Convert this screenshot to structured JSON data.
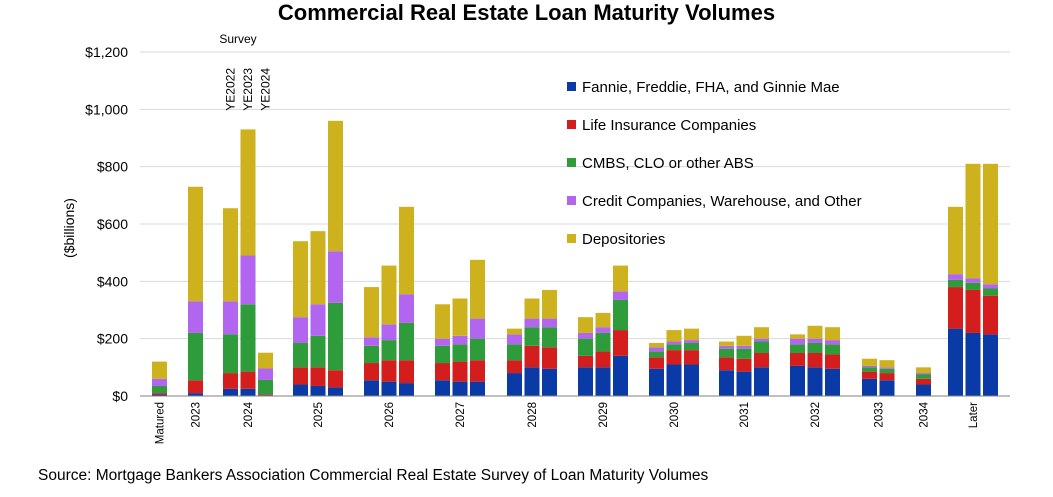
{
  "chart_data": {
    "type": "bar",
    "stacked": true,
    "title": "Commercial Real Estate Loan Maturity Volumes",
    "ylabel": "($billions)",
    "xlabel": "",
    "ylim": [
      0,
      1200
    ],
    "yticks": [
      {
        "value": 0,
        "label": "$0"
      },
      {
        "value": 200,
        "label": "$200"
      },
      {
        "value": 400,
        "label": "$400"
      },
      {
        "value": 600,
        "label": "$600"
      },
      {
        "value": 800,
        "label": "$800"
      },
      {
        "value": 1000,
        "label": "$1,000"
      },
      {
        "value": 1200,
        "label": "$1,200"
      }
    ],
    "grid": true,
    "legend_position": "top-right",
    "series": [
      {
        "name": "Fannie, Freddie, FHA, and Ginnie Mae",
        "color": "#0a3aa6"
      },
      {
        "name": "Life Insurance Companies",
        "color": "#d41e1e"
      },
      {
        "name": "CMBS, CLO or other ABS",
        "color": "#2e9c3a"
      },
      {
        "name": "Credit Companies, Warehouse, and Other",
        "color": "#b266f0"
      },
      {
        "name": "Depositories",
        "color": "#cdb21e"
      }
    ],
    "annotation": {
      "heading": "Survey",
      "bar_labels": [
        "YE2022",
        "YE2023",
        "YE2024"
      ]
    },
    "groups": [
      {
        "category": "Matured",
        "bars": [
          [
            5,
            5,
            25,
            25,
            60
          ]
        ]
      },
      {
        "category": "2023",
        "bars": [
          [
            10,
            45,
            165,
            110,
            400
          ]
        ]
      },
      {
        "category": "2024",
        "bars": [
          [
            25,
            55,
            135,
            115,
            325
          ],
          [
            25,
            60,
            235,
            170,
            440
          ],
          [
            3,
            3,
            50,
            40,
            55
          ]
        ]
      },
      {
        "category": "2025",
        "bars": [
          [
            40,
            60,
            85,
            90,
            265
          ],
          [
            35,
            65,
            110,
            110,
            255
          ],
          [
            30,
            60,
            235,
            180,
            455
          ]
        ]
      },
      {
        "category": "2026",
        "bars": [
          [
            55,
            60,
            60,
            30,
            175
          ],
          [
            50,
            75,
            70,
            55,
            205
          ],
          [
            45,
            80,
            130,
            100,
            305
          ]
        ]
      },
      {
        "category": "2027",
        "bars": [
          [
            55,
            60,
            60,
            25,
            120
          ],
          [
            50,
            70,
            60,
            30,
            130
          ],
          [
            50,
            75,
            75,
            70,
            205
          ]
        ]
      },
      {
        "category": "2028",
        "bars": [
          [
            80,
            45,
            55,
            35,
            20
          ],
          [
            100,
            75,
            65,
            30,
            70
          ],
          [
            95,
            75,
            70,
            30,
            100
          ]
        ]
      },
      {
        "category": "2029",
        "bars": [
          [
            100,
            40,
            60,
            20,
            55
          ],
          [
            100,
            55,
            65,
            20,
            50
          ],
          [
            140,
            90,
            105,
            30,
            90
          ]
        ]
      },
      {
        "category": "2030",
        "bars": [
          [
            95,
            40,
            20,
            15,
            15
          ],
          [
            110,
            50,
            20,
            10,
            40
          ],
          [
            110,
            50,
            25,
            10,
            40
          ]
        ]
      },
      {
        "category": "2031",
        "bars": [
          [
            90,
            45,
            30,
            10,
            15
          ],
          [
            85,
            45,
            35,
            10,
            35
          ],
          [
            100,
            50,
            40,
            10,
            40
          ]
        ]
      },
      {
        "category": "2032",
        "bars": [
          [
            105,
            45,
            30,
            20,
            15
          ],
          [
            100,
            50,
            35,
            15,
            45
          ],
          [
            95,
            50,
            35,
            15,
            45
          ]
        ]
      },
      {
        "category": "2033",
        "bars": [
          [
            60,
            25,
            15,
            5,
            25
          ],
          [
            55,
            25,
            15,
            5,
            25
          ]
        ]
      },
      {
        "category": "2034",
        "bars": [
          [
            40,
            20,
            15,
            5,
            20
          ]
        ]
      },
      {
        "category": "Later",
        "bars": [
          [
            235,
            145,
            25,
            20,
            235
          ],
          [
            220,
            150,
            25,
            15,
            400
          ],
          [
            215,
            135,
            25,
            15,
            420
          ]
        ]
      }
    ]
  },
  "source": "Source: Mortgage Bankers Association Commercial Real Estate Survey of Loan Maturity Volumes"
}
